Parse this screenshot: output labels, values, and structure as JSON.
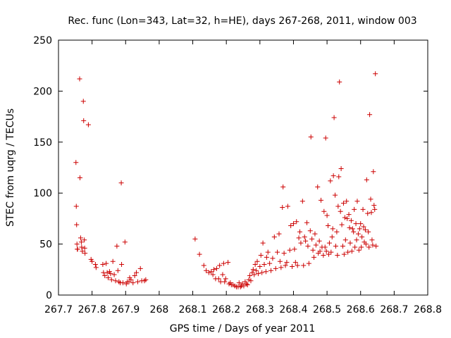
{
  "chart_data": {
    "type": "scatter",
    "title": "Rec. func (Lon=343, Lat=32, h=HE), days 267-268, 2011, window 003",
    "xlabel": "GPS time / Days of year 2011",
    "ylabel": "STEC from uqrg / TECUs",
    "xlim": [
      267.7,
      268.8
    ],
    "ylim": [
      0,
      250
    ],
    "xticks": [
      267.7,
      267.8,
      267.9,
      268,
      268.1,
      268.2,
      268.3,
      268.4,
      268.5,
      268.6,
      268.7,
      268.8
    ],
    "xtick_labels": [
      "267.7",
      "267.8",
      "267.9",
      "268",
      "268.1",
      "268.2",
      "268.3",
      "268.4",
      "268.5",
      "268.6",
      "268.7",
      "268.8"
    ],
    "yticks": [
      0,
      50,
      100,
      150,
      200,
      250
    ],
    "ytick_labels": [
      "0",
      "50",
      "100",
      "150",
      "200",
      "250"
    ],
    "grid": false,
    "marker": "+",
    "color": "#cc0000",
    "points": [
      [
        267.752,
        130
      ],
      [
        267.753,
        87
      ],
      [
        267.754,
        69
      ],
      [
        267.755,
        50
      ],
      [
        267.756,
        45
      ],
      [
        267.757,
        45
      ],
      [
        267.763,
        212
      ],
      [
        267.764,
        115
      ],
      [
        267.766,
        56
      ],
      [
        267.768,
        52
      ],
      [
        267.769,
        47
      ],
      [
        267.771,
        43
      ],
      [
        267.774,
        190
      ],
      [
        267.775,
        171
      ],
      [
        267.777,
        54
      ],
      [
        267.778,
        46
      ],
      [
        267.779,
        41
      ],
      [
        267.789,
        167
      ],
      [
        267.797,
        35
      ],
      [
        267.8,
        33
      ],
      [
        267.81,
        30
      ],
      [
        267.812,
        27
      ],
      [
        267.832,
        30
      ],
      [
        267.834,
        22
      ],
      [
        267.838,
        19
      ],
      [
        267.842,
        31
      ],
      [
        267.845,
        22
      ],
      [
        267.848,
        17
      ],
      [
        267.852,
        23
      ],
      [
        267.855,
        21
      ],
      [
        267.858,
        15
      ],
      [
        267.862,
        33
      ],
      [
        267.866,
        20
      ],
      [
        267.87,
        14
      ],
      [
        267.874,
        48
      ],
      [
        267.877,
        24
      ],
      [
        267.88,
        13
      ],
      [
        267.884,
        12
      ],
      [
        267.887,
        110
      ],
      [
        267.888,
        30
      ],
      [
        267.892,
        12
      ],
      [
        267.898,
        52
      ],
      [
        267.902,
        11
      ],
      [
        267.905,
        13
      ],
      [
        267.91,
        13
      ],
      [
        267.912,
        17
      ],
      [
        267.916,
        15
      ],
      [
        267.922,
        12
      ],
      [
        267.927,
        19
      ],
      [
        267.932,
        22
      ],
      [
        267.936,
        13
      ],
      [
        267.944,
        26
      ],
      [
        267.948,
        14
      ],
      [
        267.956,
        14
      ],
      [
        267.96,
        15
      ],
      [
        268.107,
        55
      ],
      [
        268.12,
        40
      ],
      [
        268.133,
        29
      ],
      [
        268.14,
        24
      ],
      [
        268.148,
        22
      ],
      [
        268.155,
        23
      ],
      [
        268.16,
        20
      ],
      [
        268.163,
        25
      ],
      [
        268.168,
        16
      ],
      [
        268.171,
        26
      ],
      [
        268.177,
        16
      ],
      [
        268.18,
        29
      ],
      [
        268.183,
        13
      ],
      [
        268.189,
        20
      ],
      [
        268.192,
        31
      ],
      [
        268.195,
        13
      ],
      [
        268.198,
        16
      ],
      [
        268.205,
        32
      ],
      [
        268.208,
        11
      ],
      [
        268.212,
        12
      ],
      [
        268.215,
        10
      ],
      [
        268.22,
        10
      ],
      [
        268.225,
        9
      ],
      [
        268.23,
        8
      ],
      [
        268.235,
        8
      ],
      [
        268.238,
        12
      ],
      [
        268.242,
        8
      ],
      [
        268.245,
        9
      ],
      [
        268.248,
        11
      ],
      [
        268.252,
        9
      ],
      [
        268.256,
        13
      ],
      [
        268.26,
        11
      ],
      [
        268.263,
        10
      ],
      [
        268.267,
        15
      ],
      [
        268.27,
        19
      ],
      [
        268.273,
        14
      ],
      [
        268.277,
        22
      ],
      [
        268.28,
        25
      ],
      [
        268.283,
        20
      ],
      [
        268.286,
        30
      ],
      [
        268.289,
        24
      ],
      [
        268.292,
        33
      ],
      [
        268.295,
        21
      ],
      [
        268.3,
        28
      ],
      [
        268.303,
        39
      ],
      [
        268.306,
        22
      ],
      [
        268.309,
        51
      ],
      [
        268.313,
        30
      ],
      [
        268.318,
        23
      ],
      [
        268.32,
        37
      ],
      [
        268.324,
        42
      ],
      [
        268.329,
        31
      ],
      [
        268.333,
        24
      ],
      [
        268.338,
        36
      ],
      [
        268.343,
        57
      ],
      [
        268.347,
        26
      ],
      [
        268.352,
        42
      ],
      [
        268.357,
        60
      ],
      [
        268.36,
        33
      ],
      [
        268.363,
        27
      ],
      [
        268.367,
        86
      ],
      [
        268.369,
        106
      ],
      [
        268.372,
        41
      ],
      [
        268.376,
        29
      ],
      [
        268.38,
        32
      ],
      [
        268.383,
        87
      ],
      [
        268.389,
        44
      ],
      [
        268.392,
        68
      ],
      [
        268.396,
        28
      ],
      [
        268.4,
        70
      ],
      [
        268.403,
        45
      ],
      [
        268.406,
        32
      ],
      [
        268.409,
        72
      ],
      [
        268.412,
        29
      ],
      [
        268.416,
        56
      ],
      [
        268.419,
        62
      ],
      [
        268.422,
        51
      ],
      [
        268.427,
        92
      ],
      [
        268.43,
        29
      ],
      [
        268.433,
        57
      ],
      [
        268.436,
        53
      ],
      [
        268.44,
        71
      ],
      [
        268.443,
        48
      ],
      [
        268.446,
        31
      ],
      [
        268.45,
        63
      ],
      [
        268.452,
        155
      ],
      [
        268.455,
        55
      ],
      [
        268.458,
        44
      ],
      [
        268.461,
        37
      ],
      [
        268.464,
        60
      ],
      [
        268.467,
        49
      ],
      [
        268.472,
        106
      ],
      [
        268.474,
        41
      ],
      [
        268.477,
        53
      ],
      [
        268.479,
        43
      ],
      [
        268.482,
        93
      ],
      [
        268.485,
        47
      ],
      [
        268.489,
        39
      ],
      [
        268.491,
        82
      ],
      [
        268.494,
        47
      ],
      [
        268.496,
        154
      ],
      [
        268.498,
        43
      ],
      [
        268.5,
        78
      ],
      [
        268.503,
        68
      ],
      [
        268.505,
        40
      ],
      [
        268.507,
        51
      ],
      [
        268.51,
        112
      ],
      [
        268.512,
        42
      ],
      [
        268.515,
        57
      ],
      [
        268.517,
        65
      ],
      [
        268.519,
        117
      ],
      [
        268.521,
        174
      ],
      [
        268.524,
        98
      ],
      [
        268.526,
        48
      ],
      [
        268.529,
        62
      ],
      [
        268.531,
        39
      ],
      [
        268.533,
        87
      ],
      [
        268.535,
        116
      ],
      [
        268.537,
        209
      ],
      [
        268.54,
        82
      ],
      [
        268.542,
        124
      ],
      [
        268.544,
        69
      ],
      [
        268.547,
        48
      ],
      [
        268.549,
        90
      ],
      [
        268.551,
        40
      ],
      [
        268.553,
        76
      ],
      [
        268.555,
        54
      ],
      [
        268.558,
        92
      ],
      [
        268.56,
        75
      ],
      [
        268.562,
        42
      ],
      [
        268.565,
        79
      ],
      [
        268.567,
        66
      ],
      [
        268.569,
        51
      ],
      [
        268.572,
        73
      ],
      [
        268.574,
        43
      ],
      [
        268.576,
        65
      ],
      [
        268.579,
        62
      ],
      [
        268.581,
        84
      ],
      [
        268.583,
        47
      ],
      [
        268.586,
        70
      ],
      [
        268.588,
        54
      ],
      [
        268.59,
        92
      ],
      [
        268.593,
        60
      ],
      [
        268.595,
        44
      ],
      [
        268.597,
        65
      ],
      [
        268.6,
        70
      ],
      [
        268.602,
        47
      ],
      [
        268.604,
        57
      ],
      [
        268.607,
        84
      ],
      [
        268.609,
        67
      ],
      [
        268.611,
        52
      ],
      [
        268.614,
        64
      ],
      [
        268.616,
        50
      ],
      [
        268.618,
        113
      ],
      [
        268.621,
        80
      ],
      [
        268.623,
        62
      ],
      [
        268.625,
        47
      ],
      [
        268.627,
        177
      ],
      [
        268.63,
        94
      ],
      [
        268.632,
        81
      ],
      [
        268.634,
        54
      ],
      [
        268.636,
        49
      ],
      [
        268.638,
        121
      ],
      [
        268.64,
        88
      ],
      [
        268.642,
        84
      ],
      [
        268.644,
        217
      ],
      [
        268.646,
        48
      ]
    ]
  }
}
